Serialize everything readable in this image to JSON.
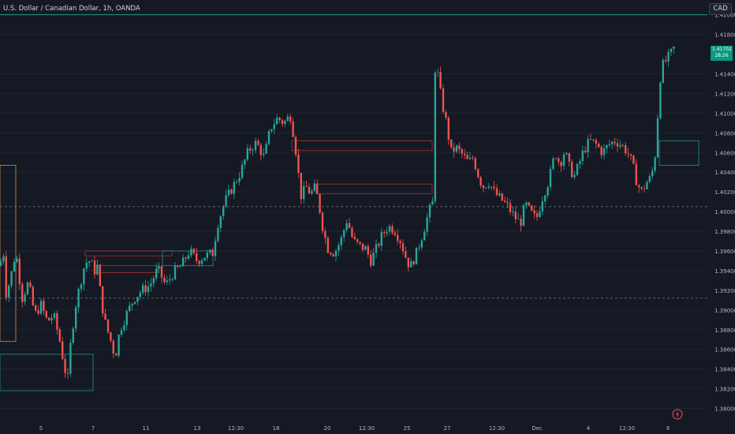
{
  "header": {
    "symbol_title": "U.S. Dollar / Canadian Dollar, 1h, OANDA",
    "currency_button": "CAD"
  },
  "price_badge": {
    "price": "1.41702",
    "countdown": "28:26"
  },
  "colors": {
    "background": "#151924",
    "up": "#26a69a",
    "down": "#ef5350",
    "grid": "#1f2330",
    "axis_text": "#b2b5be",
    "zone_orange": "#f7a35c",
    "zone_red": "#c0392b",
    "zone_green": "#26a69a",
    "badge": "#089981"
  },
  "chart_data": {
    "type": "candlestick",
    "ylim": [
      1.379,
      1.4215
    ],
    "y_ticks": [
      "1.38000",
      "1.38200",
      "1.38400",
      "1.38600",
      "1.38800",
      "1.39000",
      "1.39200",
      "1.39400",
      "1.39600",
      "1.39800",
      "1.40000",
      "1.40200",
      "1.40400",
      "1.40600",
      "1.40800",
      "1.41000",
      "1.41200",
      "1.41400",
      "1.41800",
      "1.42000"
    ],
    "x_ticks": [
      "5",
      "7",
      "11",
      "13",
      "12:30",
      "18",
      "20",
      "12:30",
      "25",
      "27",
      "12:30",
      "Dec",
      "4",
      "12:30",
      "9"
    ],
    "close_path": [
      [
        0,
        1.3945
      ],
      [
        4,
        1.3962
      ],
      [
        8,
        1.3915
      ],
      [
        14,
        1.3935
      ],
      [
        20,
        1.396
      ],
      [
        28,
        1.3912
      ],
      [
        36,
        1.3928
      ],
      [
        44,
        1.3895
      ],
      [
        52,
        1.3905
      ],
      [
        60,
        1.3888
      ],
      [
        68,
        1.3895
      ],
      [
        76,
        1.3868
      ],
      [
        82,
        1.384
      ],
      [
        86,
        1.383
      ],
      [
        90,
        1.387
      ],
      [
        96,
        1.3905
      ],
      [
        102,
        1.3928
      ],
      [
        108,
        1.3948
      ],
      [
        114,
        1.395
      ],
      [
        120,
        1.394
      ],
      [
        124,
        1.3945
      ],
      [
        128,
        1.391
      ],
      [
        134,
        1.3885
      ],
      [
        140,
        1.387
      ],
      [
        146,
        1.3852
      ],
      [
        152,
        1.388
      ],
      [
        160,
        1.3895
      ],
      [
        170,
        1.3912
      ],
      [
        180,
        1.392
      ],
      [
        190,
        1.3925
      ],
      [
        200,
        1.3942
      ],
      [
        210,
        1.3925
      ],
      [
        220,
        1.3938
      ],
      [
        230,
        1.3945
      ],
      [
        240,
        1.396
      ],
      [
        250,
        1.395
      ],
      [
        260,
        1.3955
      ],
      [
        270,
        1.3958
      ],
      [
        275,
        1.3985
      ],
      [
        285,
        1.401
      ],
      [
        295,
        1.4025
      ],
      [
        305,
        1.404
      ],
      [
        315,
        1.4062
      ],
      [
        325,
        1.407
      ],
      [
        335,
        1.4055
      ],
      [
        343,
        1.4085
      ],
      [
        352,
        1.4095
      ],
      [
        360,
        1.409
      ],
      [
        368,
        1.4098
      ],
      [
        374,
        1.407
      ],
      [
        378,
        1.404
      ],
      [
        382,
        1.4015
      ],
      [
        388,
        1.4025
      ],
      [
        394,
        1.4018
      ],
      [
        400,
        1.4025
      ],
      [
        406,
        1.4
      ],
      [
        410,
        1.398
      ],
      [
        416,
        1.3962
      ],
      [
        424,
        1.3958
      ],
      [
        432,
        1.397
      ],
      [
        440,
        1.3992
      ],
      [
        448,
        1.397
      ],
      [
        456,
        1.3965
      ],
      [
        464,
        1.3962
      ],
      [
        470,
        1.395
      ],
      [
        476,
        1.396
      ],
      [
        484,
        1.3975
      ],
      [
        492,
        1.3985
      ],
      [
        500,
        1.3982
      ],
      [
        508,
        1.397
      ],
      [
        514,
        1.3955
      ],
      [
        520,
        1.3943
      ],
      [
        528,
        1.3958
      ],
      [
        536,
        1.3978
      ],
      [
        544,
        1.4
      ],
      [
        549,
        1.401
      ],
      [
        552,
        1.4155
      ],
      [
        556,
        1.4135
      ],
      [
        560,
        1.4112
      ],
      [
        566,
        1.409
      ],
      [
        572,
        1.406
      ],
      [
        578,
        1.4065
      ],
      [
        586,
        1.4058
      ],
      [
        594,
        1.405
      ],
      [
        600,
        1.4055
      ],
      [
        606,
        1.4038
      ],
      [
        612,
        1.4025
      ],
      [
        620,
        1.403
      ],
      [
        628,
        1.4018
      ],
      [
        636,
        1.4012
      ],
      [
        644,
        1.4005
      ],
      [
        652,
        1.3995
      ],
      [
        660,
        1.3988
      ],
      [
        666,
        1.4008
      ],
      [
        672,
        1.4
      ],
      [
        680,
        1.3992
      ],
      [
        688,
        1.4015
      ],
      [
        696,
        1.4032
      ],
      [
        704,
        1.406
      ],
      [
        710,
        1.4048
      ],
      [
        716,
        1.4062
      ],
      [
        722,
        1.4045
      ],
      [
        728,
        1.4035
      ],
      [
        734,
        1.4048
      ],
      [
        740,
        1.4062
      ],
      [
        748,
        1.4072
      ],
      [
        756,
        1.4068
      ],
      [
        764,
        1.406
      ],
      [
        772,
        1.4068
      ],
      [
        780,
        1.4072
      ],
      [
        788,
        1.4068
      ],
      [
        796,
        1.406
      ],
      [
        802,
        1.4048
      ],
      [
        808,
        1.4028
      ],
      [
        814,
        1.402
      ],
      [
        820,
        1.403
      ],
      [
        826,
        1.4035
      ],
      [
        832,
        1.4065
      ],
      [
        836,
        1.413
      ],
      [
        840,
        1.4148
      ],
      [
        846,
        1.4155
      ],
      [
        852,
        1.4162
      ],
      [
        857,
        1.417
      ]
    ],
    "horizontal_lines": [
      {
        "price": 1.42,
        "style": "solid",
        "color": "#26a69a"
      },
      {
        "price": 1.4005,
        "style": "dashed",
        "color": "#787b86"
      },
      {
        "price": 1.3912,
        "style": "dashed",
        "color": "#787b86"
      }
    ],
    "zones": [
      {
        "x0": 0,
        "x1": 20,
        "p0": 1.3868,
        "p1": 1.4047,
        "color": "orange"
      },
      {
        "x0": 0,
        "x1": 118,
        "p0": 1.3818,
        "p1": 1.3855,
        "color": "green"
      },
      {
        "x0": 108,
        "x1": 218,
        "p0": 1.3955,
        "p1": 1.396,
        "color": "red"
      },
      {
        "x0": 120,
        "x1": 200,
        "p0": 1.3938,
        "p1": 1.3945,
        "color": "red"
      },
      {
        "x0": 370,
        "x1": 548,
        "p0": 1.4062,
        "p1": 1.4072,
        "color": "red"
      },
      {
        "x0": 400,
        "x1": 548,
        "p0": 1.4018,
        "p1": 1.4028,
        "color": "red"
      },
      {
        "x0": 836,
        "x1": 886,
        "p0": 1.4047,
        "p1": 1.4072,
        "color": "green"
      },
      {
        "x0": 206,
        "x1": 270,
        "p0": 1.3945,
        "p1": 1.396,
        "color": "green"
      }
    ]
  }
}
